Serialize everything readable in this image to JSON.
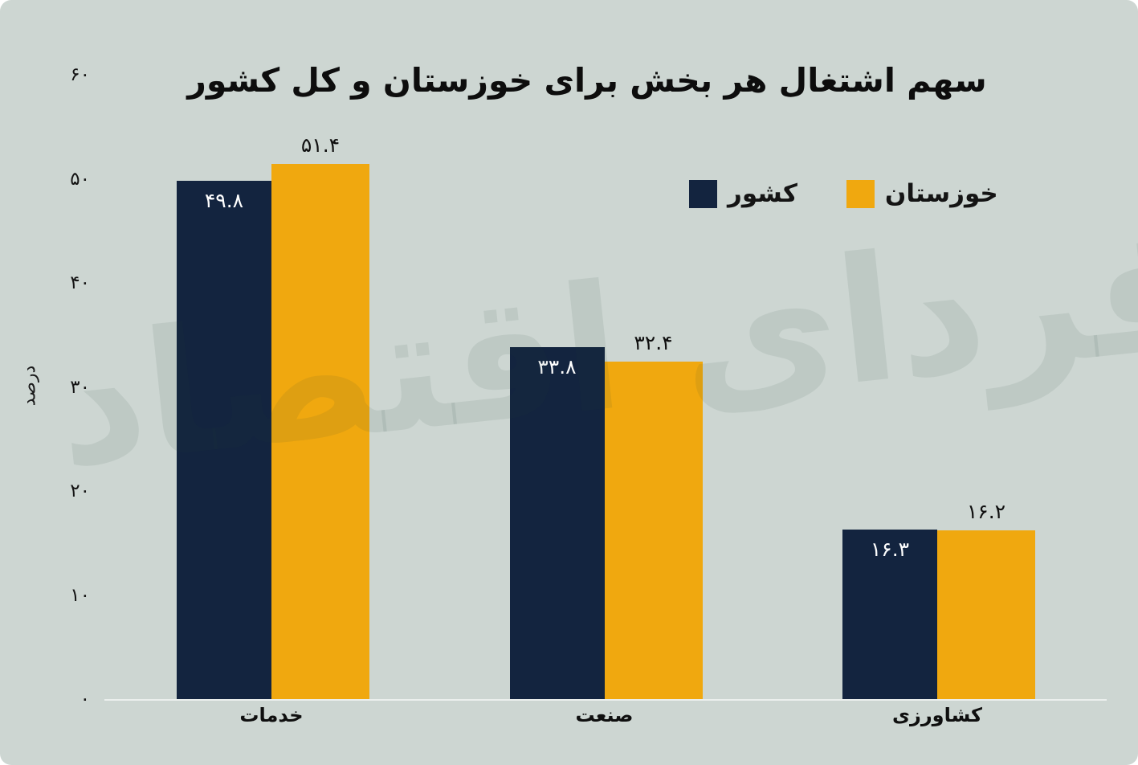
{
  "chart_data": {
    "type": "bar",
    "title": "سهم اشتغال هر بخش برای خوزستان و کل کشور",
    "ylabel": "درصد",
    "categories": [
      "خدمات",
      "صنعت",
      "کشاورزی"
    ],
    "series": [
      {
        "name": "کشور",
        "color": "#13243F",
        "values": [
          49.8,
          33.8,
          16.3
        ],
        "value_labels": [
          "۴۹.۸",
          "۳۳.۸",
          "۱۶.۳"
        ]
      },
      {
        "name": "خوزستان",
        "color": "#F0A80F",
        "values": [
          51.4,
          32.4,
          16.2
        ],
        "value_labels": [
          "۵۱.۴",
          "۳۲.۴",
          "۱۶.۲"
        ]
      }
    ],
    "ylim": [
      0,
      60
    ],
    "yticks": [
      0,
      10,
      20,
      30,
      40,
      50,
      60
    ],
    "ytick_labels": [
      "۰",
      "۱۰",
      "۲۰",
      "۳۰",
      "۴۰",
      "۵۰",
      "۶۰"
    ],
    "legend_position": "top-right",
    "grid": false,
    "background_color": "#CDD6D2",
    "axis_line_color": "rgba(255,255,255,0.6)"
  },
  "watermark": {
    "text": "فردای اقتصاد"
  }
}
